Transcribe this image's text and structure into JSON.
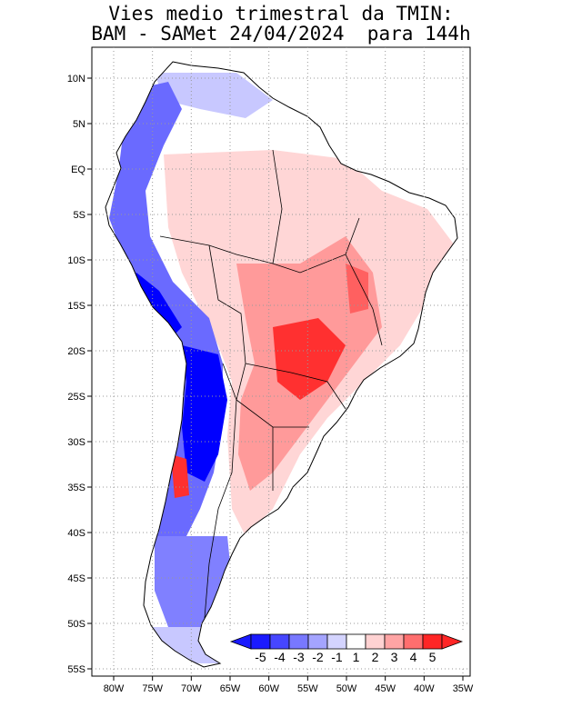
{
  "title": {
    "line1": "Vies medio trimestral da TMIN:",
    "line2": "BAM - SAMet 24/04/2024  para 144h"
  },
  "axes": {
    "lon_labels": [
      "80W",
      "75W",
      "70W",
      "65W",
      "60W",
      "55W",
      "50W",
      "45W",
      "40W",
      "35W"
    ],
    "lat_labels": [
      "10N",
      "5N",
      "EQ",
      "5S",
      "10S",
      "15S",
      "20S",
      "25S",
      "30S",
      "35S",
      "40S",
      "45S",
      "50S",
      "55S"
    ]
  },
  "colorbar": {
    "labels": [
      "-5",
      "-4",
      "-3",
      "-2",
      "-1",
      "1",
      "2",
      "3",
      "4",
      "5"
    ],
    "colors": [
      "#1a1aff",
      "#4646ff",
      "#7878ff",
      "#a4a4ff",
      "#d4d4ff",
      "#ffffff",
      "#ffd2d2",
      "#ffa4a4",
      "#ff6e6e",
      "#ff2626"
    ]
  },
  "colors": {
    "deep_blue": "#0000ff",
    "medium_blue": "#6a6aff",
    "light_blue": "#c8c8ff",
    "light_red": "#ffd6d6",
    "medium_red": "#ff9a9a",
    "strong_red": "#ff3030",
    "grid": "#999999",
    "border": "#000000"
  }
}
